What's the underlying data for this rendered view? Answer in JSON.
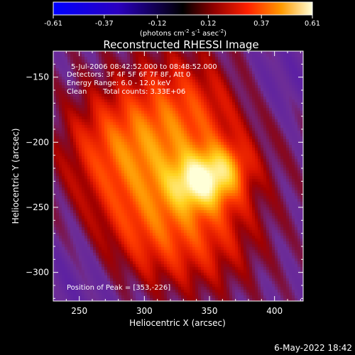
{
  "chart_data": {
    "type": "heatmap",
    "title": "Reconstructed RHESSI Image",
    "xlabel": "Heliocentric X (arcsec)",
    "ylabel": "Heliocentric Y (arcsec)",
    "xlim": [
      230,
      422
    ],
    "ylim": [
      -322,
      -130
    ],
    "x_ticks": [
      250,
      300,
      350,
      400
    ],
    "y_ticks": [
      -150,
      -200,
      -250,
      -300
    ],
    "colorbar": {
      "min": -0.61,
      "max": 0.61,
      "ticks": [
        "-0.61",
        "-0.37",
        "-0.12",
        "0.12",
        "0.37",
        "0.61"
      ],
      "label": "(photons cm",
      "label_sup1": "-2",
      "label_mid": " s",
      "label_sup2": "-1",
      "label_end": " asec",
      "label_sup3": "-2",
      "label_close": ")"
    },
    "annotations": {
      "time_range": "5-Jul-2006 08:42:52.000 to 08:48:52.000",
      "detectors": "Detectors: 3F 4F 5F 6F 7F 8F, Att 0",
      "energy": "Energy Range: 6.0 - 12.0 keV",
      "method": "Clean",
      "counts": "Total counts: 3.33E+06",
      "peak": "Position of Peak = [353,-226]"
    },
    "peak": [
      353,
      -226
    ],
    "background_value": -0.08
  },
  "footer": {
    "date": "6-May-2022 18:42"
  }
}
